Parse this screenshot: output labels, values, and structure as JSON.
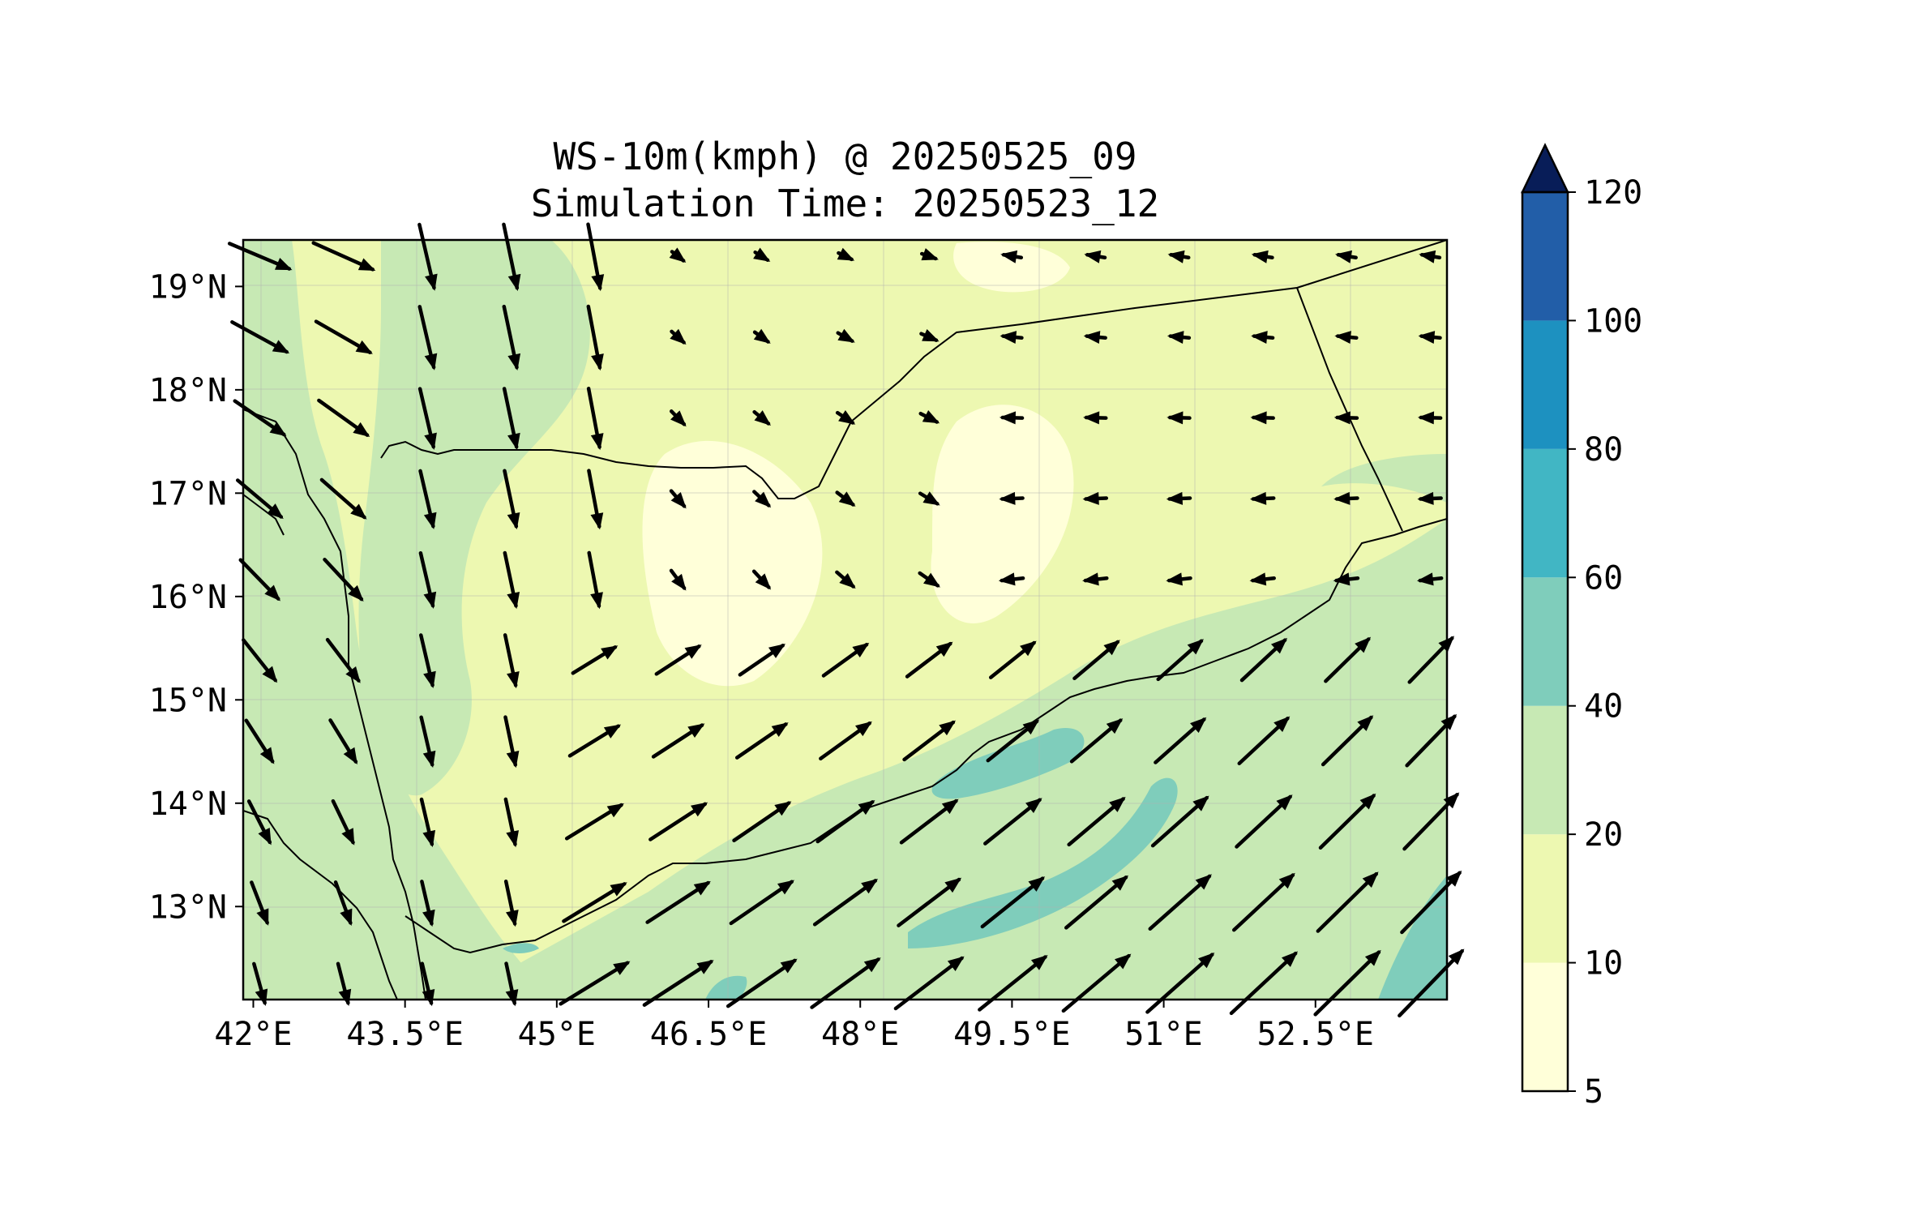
{
  "title_line1": "WS-10m(kmph) @ 20250525_09",
  "title_line2": "Simulation Time: 20250523_12",
  "map": {
    "lon_range": [
      41.9,
      53.8
    ],
    "lat_range": [
      12.1,
      19.45
    ],
    "x_ticks": [
      "42°E",
      "43.5°E",
      "45°E",
      "46.5°E",
      "48°E",
      "49.5°E",
      "51°E",
      "52.5°E"
    ],
    "x_tick_values": [
      42,
      43.5,
      45,
      46.5,
      48,
      49.5,
      51,
      52.5
    ],
    "y_ticks": [
      "19°N",
      "18°N",
      "17°N",
      "16°N",
      "15°N",
      "14°N",
      "13°N"
    ],
    "y_tick_values": [
      19,
      18,
      17,
      16,
      15,
      14,
      13
    ]
  },
  "colorbar": {
    "levels": [
      "5",
      "10",
      "20",
      "40",
      "60",
      "80",
      "100",
      "120"
    ],
    "colors": [
      "#ffffd9",
      "#edf8b1",
      "#c7e9b4",
      "#7fcdbb",
      "#41b6c4",
      "#1d91c0",
      "#225ea8",
      "#253494"
    ],
    "extend_color": "#081d58"
  }
}
